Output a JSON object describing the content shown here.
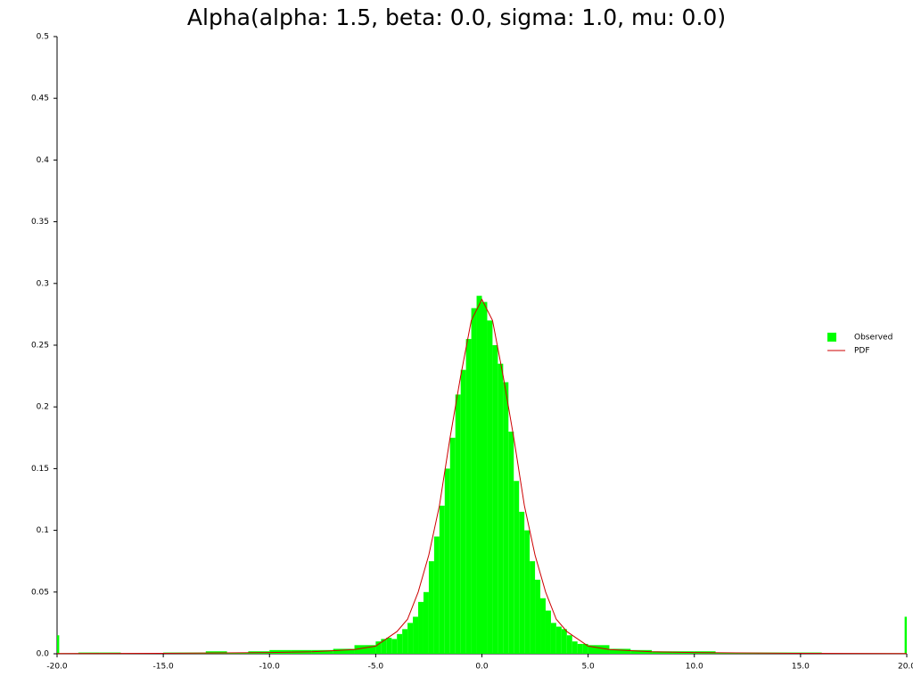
{
  "chart_data": {
    "type": "histogram",
    "title": "Alpha(alpha: 1.5, beta: 0.0, sigma: 1.0, mu: 0.0)",
    "bins": [
      -20,
      -19.9,
      -19,
      -18,
      -17,
      -16,
      -15,
      -14,
      -13,
      -12,
      -11,
      -10,
      -9,
      -8,
      -7,
      -6,
      -5,
      -4.75,
      -4.5,
      -4.25,
      -4,
      -3.75,
      -3.5,
      -3.25,
      -3,
      -2.75,
      -2.5,
      -2.25,
      -2,
      -1.75,
      -1.5,
      -1.25,
      -1,
      -0.75,
      -0.5,
      -0.25,
      0,
      0.25,
      0.5,
      0.75,
      1,
      1.25,
      1.5,
      1.75,
      2,
      2.25,
      2.5,
      2.75,
      3,
      3.25,
      3.5,
      3.75,
      4,
      4.25,
      4.5,
      4.75,
      5,
      6,
      7,
      8,
      9,
      10,
      11,
      12,
      13,
      14,
      15,
      16,
      17,
      18,
      19,
      19.9,
      20
    ],
    "series": [
      {
        "name": "Observed",
        "color": "#00ff00",
        "values": [
          0.015,
          0.0005,
          0.001,
          0.001,
          0.0005,
          0.0005,
          0.001,
          0.001,
          0.002,
          0.001,
          0.002,
          0.003,
          0.003,
          0.003,
          0.004,
          0.007,
          0.01,
          0.012,
          0.013,
          0.012,
          0.016,
          0.02,
          0.025,
          0.03,
          0.042,
          0.05,
          0.075,
          0.095,
          0.12,
          0.15,
          0.175,
          0.21,
          0.23,
          0.255,
          0.28,
          0.29,
          0.285,
          0.27,
          0.25,
          0.235,
          0.22,
          0.18,
          0.14,
          0.115,
          0.1,
          0.075,
          0.06,
          0.045,
          0.035,
          0.025,
          0.022,
          0.02,
          0.015,
          0.01,
          0.008,
          0.008,
          0.007,
          0.004,
          0.003,
          0.002,
          0.002,
          0.002,
          0.001,
          0.001,
          0.001,
          0.001,
          0.001,
          0.0005,
          0.0005,
          0.0005,
          0.0005,
          0.03
        ]
      },
      {
        "name": "PDF",
        "color": "#cc0000",
        "kind": "line",
        "x": [
          -20,
          -15,
          -10,
          -8,
          -6,
          -5,
          -4,
          -3.5,
          -3,
          -2.5,
          -2,
          -1.5,
          -1,
          -0.5,
          0,
          0.5,
          1,
          1.5,
          2,
          2.5,
          3,
          3.5,
          4,
          5,
          6,
          8,
          10,
          15,
          20
        ],
        "values": [
          0.00017,
          0.00034,
          0.00095,
          0.00165,
          0.0034,
          0.0062,
          0.018,
          0.028,
          0.05,
          0.08,
          0.12,
          0.175,
          0.225,
          0.27,
          0.287,
          0.27,
          0.225,
          0.175,
          0.12,
          0.08,
          0.05,
          0.028,
          0.018,
          0.0062,
          0.0034,
          0.00165,
          0.00095,
          0.00034,
          0.00017
        ]
      }
    ],
    "xlim": [
      -20,
      20
    ],
    "xticks": [
      {
        "value": -20,
        "label": "-20.0"
      },
      {
        "value": -15,
        "label": "-15.0"
      },
      {
        "value": -10,
        "label": "-10.0"
      },
      {
        "value": -5,
        "label": "-5.0"
      },
      {
        "value": 0,
        "label": "0.0"
      },
      {
        "value": 5,
        "label": "5.0"
      },
      {
        "value": 10,
        "label": "10.0"
      },
      {
        "value": 15,
        "label": "15.0"
      },
      {
        "value": 20,
        "label": "20.0"
      }
    ],
    "ylim": [
      0,
      0.5
    ],
    "yticks": [
      {
        "value": 0,
        "label": "0.0"
      },
      0.05,
      0.1,
      0.15,
      0.2,
      0.25,
      0.3,
      0.35,
      0.4,
      0.45,
      0.5
    ],
    "legend": "right"
  }
}
